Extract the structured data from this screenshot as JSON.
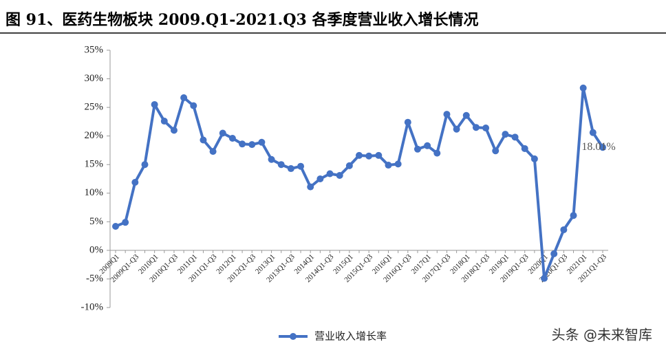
{
  "chart_data": {
    "type": "line",
    "title": "图 91、医药生物板块 2009.Q1-2021.Q3 各季度营业收入增长情况",
    "categories": [
      "2009Q1",
      null,
      "2009Q1-Q3",
      null,
      "2010Q1",
      null,
      "2010Q1-Q3",
      null,
      "2011Q1",
      null,
      "2011Q1-Q3",
      null,
      "2012Q1",
      null,
      "2012Q1-Q3",
      null,
      "2013Q1",
      null,
      "2013Q1-Q3",
      null,
      "2014Q1",
      null,
      "2014Q1-Q3",
      null,
      "2015Q1",
      null,
      "2015Q1-Q3",
      null,
      "2016Q1",
      null,
      "2016Q1-Q3",
      null,
      "2017Q1",
      null,
      "2017Q1-Q3",
      null,
      "2018Q1",
      null,
      "2018Q1-Q3",
      null,
      "2019Q1",
      null,
      "2019Q1-Q3",
      null,
      "2020Q1",
      null,
      "2020Q1-Q3",
      null,
      "2021Q1",
      null,
      "2021Q1-Q3"
    ],
    "series": [
      {
        "name": "营业收入增长率",
        "color": "#4472c4",
        "values": [
          4.2,
          4.9,
          11.9,
          15.0,
          25.5,
          22.6,
          21.0,
          26.7,
          25.3,
          19.3,
          17.3,
          20.5,
          19.6,
          18.6,
          18.5,
          18.9,
          15.9,
          15.0,
          14.3,
          14.7,
          11.1,
          12.5,
          13.4,
          13.1,
          14.8,
          16.6,
          16.5,
          16.6,
          14.9,
          15.1,
          22.4,
          17.7,
          18.3,
          17.0,
          23.8,
          21.2,
          23.6,
          21.5,
          21.4,
          17.4,
          20.3,
          19.8,
          17.8,
          16.0,
          -4.9,
          -0.6,
          3.6,
          6.1,
          28.4,
          20.6,
          18.01
        ],
        "value_labels": [
          null,
          null,
          null,
          null,
          null,
          null,
          null,
          null,
          null,
          null,
          null,
          null,
          null,
          null,
          null,
          null,
          null,
          null,
          null,
          null,
          null,
          null,
          null,
          null,
          null,
          null,
          null,
          null,
          null,
          null,
          null,
          null,
          null,
          null,
          null,
          null,
          null,
          null,
          null,
          null,
          null,
          null,
          null,
          null,
          null,
          null,
          null,
          null,
          null,
          null,
          "18.01%"
        ]
      }
    ],
    "ylim": [
      -10,
      35
    ],
    "yticks": [
      {
        "value": -10,
        "label": "-10%"
      },
      {
        "value": -5,
        "label": "-5%"
      },
      {
        "value": 0,
        "label": "0%"
      },
      {
        "value": 5,
        "label": "5%"
      },
      {
        "value": 10,
        "label": "10%"
      },
      {
        "value": 15,
        "label": "15%"
      },
      {
        "value": 20,
        "label": "20%"
      },
      {
        "value": 25,
        "label": "25%"
      },
      {
        "value": 30,
        "label": "30%"
      },
      {
        "value": 35,
        "label": "35%"
      }
    ],
    "legend": "bottom"
  },
  "watermark": "头条 @未来智库"
}
